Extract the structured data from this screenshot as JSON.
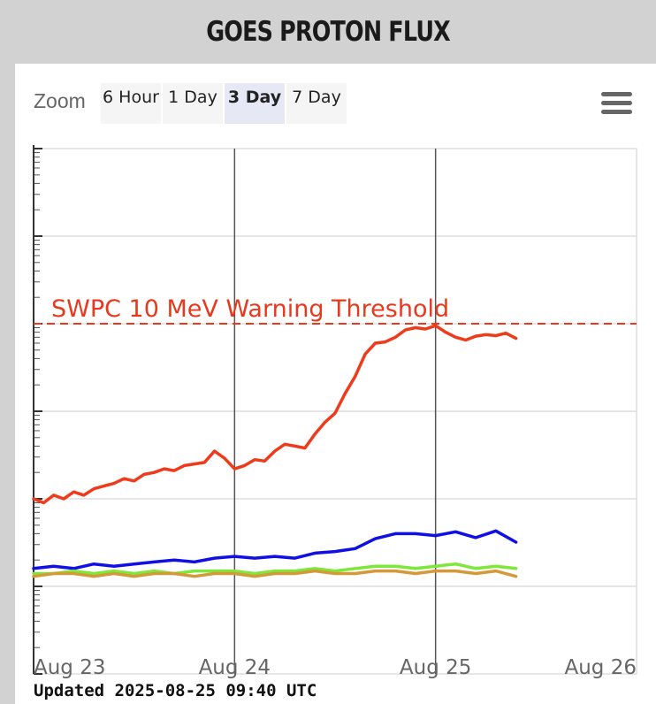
{
  "header": {
    "title": "GOES PROTON FLUX"
  },
  "zoom": {
    "label": "Zoom",
    "buttons": [
      "6 Hour",
      "1 Day",
      "3 Day",
      "7 Day"
    ],
    "active": "3 Day"
  },
  "menu": {
    "icon": "hamburger-menu-icon"
  },
  "updated_text": "Updated 2025-08-25 09:40 UTC",
  "colors": {
    "threshold": "#e8391e",
    "series_10mev": "#ee3b1c",
    "series_50mev": "#1010e6",
    "series_100mev": "#7de83a",
    "series_500mev": "#d49a3a",
    "grid": "#dddddd",
    "day_line": "#555555"
  },
  "chart_data": {
    "type": "line",
    "title": "GOES PROTON FLUX",
    "xlabel": "",
    "ylabel": "",
    "x_tick_labels": [
      "Aug 23",
      "Aug 24",
      "Aug 25",
      "Aug 26"
    ],
    "x_range_days": [
      0,
      3
    ],
    "y_scale": "log",
    "y_range_log10": [
      -3,
      3
    ],
    "grid": true,
    "threshold": {
      "label": "SWPC 10 MeV Warning Threshold",
      "value": 10
    },
    "series": [
      {
        "color": "#ee3b1c",
        "x": [
          0,
          0.05,
          0.1,
          0.15,
          0.2,
          0.25,
          0.3,
          0.35,
          0.4,
          0.45,
          0.5,
          0.55,
          0.6,
          0.65,
          0.7,
          0.75,
          0.8,
          0.85,
          0.9,
          0.95,
          1.0,
          1.05,
          1.1,
          1.15,
          1.2,
          1.25,
          1.3,
          1.35,
          1.4,
          1.45,
          1.5,
          1.55,
          1.6,
          1.65,
          1.7,
          1.75,
          1.8,
          1.85,
          1.9,
          1.95,
          2.0,
          2.05,
          2.1,
          2.15,
          2.2,
          2.25,
          2.3,
          2.35,
          2.4
        ],
        "values": [
          0.1,
          0.09,
          0.11,
          0.1,
          0.12,
          0.11,
          0.13,
          0.14,
          0.15,
          0.17,
          0.16,
          0.19,
          0.2,
          0.22,
          0.21,
          0.24,
          0.25,
          0.26,
          0.35,
          0.29,
          0.22,
          0.24,
          0.28,
          0.27,
          0.35,
          0.42,
          0.4,
          0.38,
          0.55,
          0.75,
          0.95,
          1.6,
          2.5,
          4.5,
          6.0,
          6.2,
          7.0,
          8.5,
          9.0,
          8.7,
          9.5,
          8.0,
          7.0,
          6.5,
          7.2,
          7.5,
          7.3,
          7.8,
          6.8
        ]
      },
      {
        "color": "#1010e6",
        "x": [
          0,
          0.1,
          0.2,
          0.3,
          0.4,
          0.5,
          0.6,
          0.7,
          0.8,
          0.9,
          1.0,
          1.1,
          1.2,
          1.3,
          1.4,
          1.5,
          1.6,
          1.7,
          1.8,
          1.9,
          2.0,
          2.1,
          2.2,
          2.3,
          2.4
        ],
        "values": [
          0.016,
          0.017,
          0.016,
          0.018,
          0.017,
          0.018,
          0.019,
          0.02,
          0.019,
          0.021,
          0.022,
          0.021,
          0.022,
          0.021,
          0.024,
          0.025,
          0.027,
          0.035,
          0.04,
          0.04,
          0.038,
          0.042,
          0.036,
          0.043,
          0.032
        ]
      },
      {
        "color": "#7de83a",
        "x": [
          0,
          0.1,
          0.2,
          0.3,
          0.4,
          0.5,
          0.6,
          0.7,
          0.8,
          0.9,
          1.0,
          1.1,
          1.2,
          1.3,
          1.4,
          1.5,
          1.6,
          1.7,
          1.8,
          1.9,
          2.0,
          2.1,
          2.2,
          2.3,
          2.4
        ],
        "values": [
          0.014,
          0.014,
          0.015,
          0.014,
          0.015,
          0.014,
          0.015,
          0.014,
          0.015,
          0.015,
          0.015,
          0.014,
          0.015,
          0.015,
          0.016,
          0.015,
          0.016,
          0.017,
          0.017,
          0.016,
          0.017,
          0.018,
          0.016,
          0.017,
          0.016
        ]
      },
      {
        "color": "#d49a3a",
        "x": [
          0,
          0.1,
          0.2,
          0.3,
          0.4,
          0.5,
          0.6,
          0.7,
          0.8,
          0.9,
          1.0,
          1.1,
          1.2,
          1.3,
          1.4,
          1.5,
          1.6,
          1.7,
          1.8,
          1.9,
          2.0,
          2.1,
          2.2,
          2.3,
          2.4
        ],
        "values": [
          0.013,
          0.014,
          0.014,
          0.013,
          0.014,
          0.013,
          0.014,
          0.014,
          0.013,
          0.014,
          0.014,
          0.013,
          0.014,
          0.014,
          0.015,
          0.014,
          0.014,
          0.015,
          0.015,
          0.014,
          0.015,
          0.015,
          0.014,
          0.015,
          0.013
        ]
      }
    ]
  }
}
